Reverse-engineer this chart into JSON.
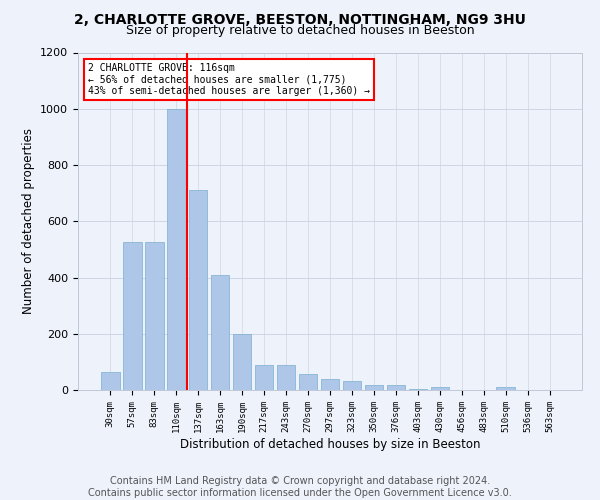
{
  "title1": "2, CHARLOTTE GROVE, BEESTON, NOTTINGHAM, NG9 3HU",
  "title2": "Size of property relative to detached houses in Beeston",
  "xlabel": "Distribution of detached houses by size in Beeston",
  "ylabel": "Number of detached properties",
  "categories": [
    "30sqm",
    "57sqm",
    "83sqm",
    "110sqm",
    "137sqm",
    "163sqm",
    "190sqm",
    "217sqm",
    "243sqm",
    "270sqm",
    "297sqm",
    "323sqm",
    "350sqm",
    "376sqm",
    "403sqm",
    "430sqm",
    "456sqm",
    "483sqm",
    "510sqm",
    "536sqm",
    "563sqm"
  ],
  "values": [
    65,
    525,
    525,
    1000,
    710,
    408,
    198,
    90,
    90,
    58,
    40,
    32,
    18,
    18,
    2,
    10,
    0,
    0,
    10,
    0,
    0
  ],
  "bar_color": "#aec6e8",
  "bar_edge_color": "#7aaed0",
  "vline_x": 3.5,
  "vline_color": "red",
  "annotation_text": "2 CHARLOTTE GROVE: 116sqm\n← 56% of detached houses are smaller (1,775)\n43% of semi-detached houses are larger (1,360) →",
  "annotation_box_color": "white",
  "annotation_box_edge": "red",
  "ylim": [
    0,
    1200
  ],
  "yticks": [
    0,
    200,
    400,
    600,
    800,
    1000,
    1200
  ],
  "footer1": "Contains HM Land Registry data © Crown copyright and database right 2024.",
  "footer2": "Contains public sector information licensed under the Open Government Licence v3.0.",
  "bg_color": "#eef2fb",
  "title1_fontsize": 10,
  "title2_fontsize": 9,
  "xlabel_fontsize": 8.5,
  "ylabel_fontsize": 8.5,
  "footer_fontsize": 7
}
